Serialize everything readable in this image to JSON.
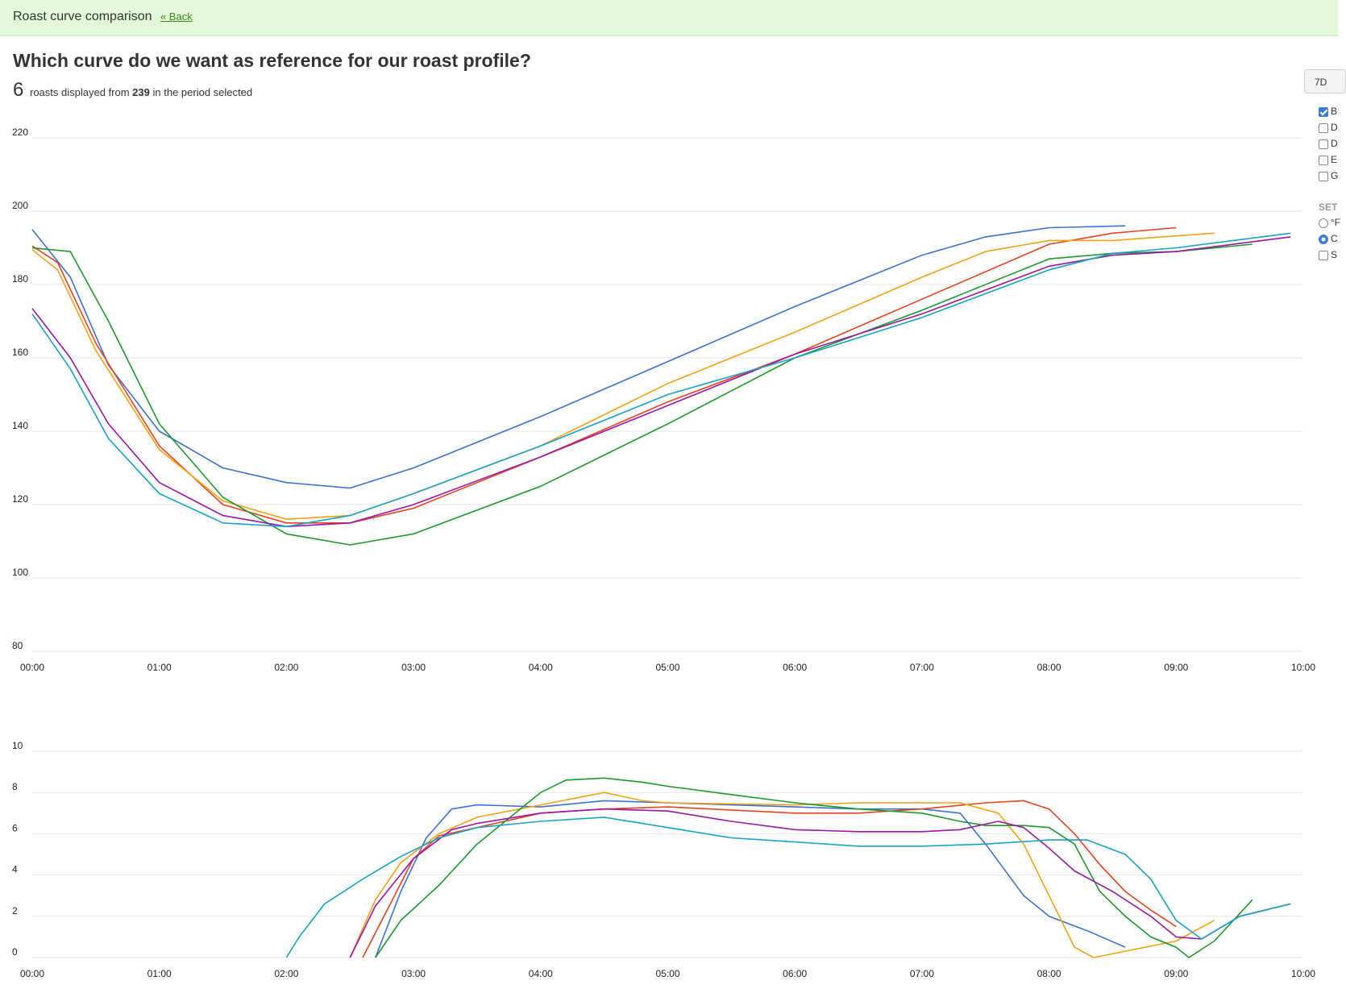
{
  "header": {
    "title": "Roast curve comparison",
    "back_label": "« Back"
  },
  "heading": "Which curve do we want as reference for our roast profile?",
  "summary": {
    "count": "6",
    "text_before": "roasts displayed from",
    "total": "239",
    "text_after": "in the period selected"
  },
  "controls": {
    "range_button": "7D",
    "checkboxes": [
      {
        "label": "B",
        "checked": true
      },
      {
        "label": "D",
        "checked": false
      },
      {
        "label": "D",
        "checked": false
      },
      {
        "label": "E",
        "checked": false
      },
      {
        "label": "G",
        "checked": false
      }
    ],
    "settings_label": "SET",
    "radios": [
      {
        "label": "°F",
        "checked": false
      },
      {
        "label": "C",
        "checked": true
      }
    ],
    "extra_checkbox": {
      "label": "S",
      "checked": false
    }
  },
  "chart_data": [
    {
      "type": "line",
      "title": "",
      "xlabel": "",
      "ylabel": "",
      "x_unit": "minutes",
      "xlim": [
        0,
        10
      ],
      "ylim": [
        80,
        220
      ],
      "yticks": [
        80,
        100,
        120,
        140,
        160,
        180,
        200,
        220
      ],
      "xtick_labels": [
        "00:00",
        "01:00",
        "02:00",
        "03:00",
        "04:00",
        "05:00",
        "06:00",
        "07:00",
        "08:00",
        "09:00",
        "10:00"
      ],
      "grid": true,
      "series": [
        {
          "color": "#3b6fd4",
          "points": [
            [
              0,
              195
            ],
            [
              0.3,
              182
            ],
            [
              0.6,
              158
            ],
            [
              1.0,
              140
            ],
            [
              1.5,
              130
            ],
            [
              2.0,
              126
            ],
            [
              2.5,
              124.5
            ],
            [
              3.0,
              130
            ],
            [
              4.0,
              144
            ],
            [
              5.0,
              159
            ],
            [
              6.0,
              174
            ],
            [
              7.0,
              188
            ],
            [
              7.5,
              193
            ],
            [
              8.0,
              195.5
            ],
            [
              8.6,
              196
            ]
          ]
        },
        {
          "color": "#e8421c",
          "points": [
            [
              0,
              190.5
            ],
            [
              0.2,
              186
            ],
            [
              0.5,
              164
            ],
            [
              1.0,
              136
            ],
            [
              1.5,
              120
            ],
            [
              2.0,
              115
            ],
            [
              2.5,
              115
            ],
            [
              3.0,
              119
            ],
            [
              4.0,
              133
            ],
            [
              5.0,
              148
            ],
            [
              6.0,
              161
            ],
            [
              7.0,
              176
            ],
            [
              8.0,
              191
            ],
            [
              8.5,
              194
            ],
            [
              9.0,
              195.5
            ]
          ]
        },
        {
          "color": "#f5a112",
          "points": [
            [
              0,
              189.5
            ],
            [
              0.2,
              184
            ],
            [
              0.5,
              162
            ],
            [
              1.0,
              135
            ],
            [
              1.5,
              121
            ],
            [
              2.0,
              116
            ],
            [
              2.5,
              117
            ],
            [
              3.0,
              123
            ],
            [
              4.0,
              136
            ],
            [
              5.0,
              153
            ],
            [
              6.0,
              167
            ],
            [
              7.0,
              182
            ],
            [
              7.5,
              189
            ],
            [
              8.0,
              192
            ],
            [
              8.5,
              192
            ],
            [
              9.3,
              194
            ]
          ]
        },
        {
          "color": "#1a9a2a",
          "points": [
            [
              0,
              190
            ],
            [
              0.3,
              189
            ],
            [
              0.6,
              170
            ],
            [
              1.0,
              142
            ],
            [
              1.5,
              122
            ],
            [
              2.0,
              112
            ],
            [
              2.5,
              109
            ],
            [
              3.0,
              112
            ],
            [
              4.0,
              125
            ],
            [
              5.0,
              142
            ],
            [
              6.0,
              160
            ],
            [
              7.0,
              173
            ],
            [
              8.0,
              187
            ],
            [
              8.5,
              188.5
            ],
            [
              9.0,
              189
            ],
            [
              9.6,
              191
            ]
          ]
        },
        {
          "color": "#9b15a8",
          "points": [
            [
              0,
              173.5
            ],
            [
              0.3,
              160
            ],
            [
              0.6,
              142
            ],
            [
              1.0,
              126
            ],
            [
              1.5,
              117
            ],
            [
              2.0,
              114
            ],
            [
              2.5,
              115
            ],
            [
              3.0,
              120
            ],
            [
              4.0,
              133
            ],
            [
              5.0,
              147
            ],
            [
              6.0,
              161
            ],
            [
              7.0,
              172
            ],
            [
              8.0,
              185
            ],
            [
              8.5,
              188
            ],
            [
              9.0,
              189
            ],
            [
              9.9,
              193
            ]
          ]
        },
        {
          "color": "#17a2c7",
          "points": [
            [
              0,
              172
            ],
            [
              0.3,
              157
            ],
            [
              0.6,
              138
            ],
            [
              1.0,
              123
            ],
            [
              1.5,
              115
            ],
            [
              2.0,
              114
            ],
            [
              2.5,
              117
            ],
            [
              3.0,
              123
            ],
            [
              4.0,
              136
            ],
            [
              5.0,
              150
            ],
            [
              6.0,
              160
            ],
            [
              7.0,
              171
            ],
            [
              8.0,
              184
            ],
            [
              8.5,
              188.5
            ],
            [
              9.0,
              190
            ],
            [
              9.9,
              194
            ]
          ]
        }
      ]
    },
    {
      "type": "line",
      "title": "",
      "xlabel": "",
      "ylabel": "",
      "x_unit": "minutes",
      "xlim": [
        0,
        10
      ],
      "ylim": [
        0,
        10
      ],
      "yticks": [
        0,
        2,
        4,
        6,
        8,
        10
      ],
      "xtick_labels": [
        "00:00",
        "01:00",
        "02:00",
        "03:00",
        "04:00",
        "05:00",
        "06:00",
        "07:00",
        "08:00",
        "09:00",
        "10:00"
      ],
      "grid": true,
      "series": [
        {
          "color": "#3b6fd4",
          "points": [
            [
              2.7,
              0
            ],
            [
              2.9,
              3.2
            ],
            [
              3.1,
              5.8
            ],
            [
              3.3,
              7.2
            ],
            [
              3.5,
              7.4
            ],
            [
              4.0,
              7.3
            ],
            [
              4.5,
              7.6
            ],
            [
              5.0,
              7.5
            ],
            [
              6.0,
              7.3
            ],
            [
              6.5,
              7.2
            ],
            [
              7.0,
              7.2
            ],
            [
              7.3,
              7.0
            ],
            [
              7.5,
              5.5
            ],
            [
              7.8,
              3.0
            ],
            [
              8.0,
              2.0
            ],
            [
              8.3,
              1.3
            ],
            [
              8.6,
              0.5
            ]
          ]
        },
        {
          "color": "#e8421c",
          "points": [
            [
              2.6,
              0
            ],
            [
              2.8,
              2.4
            ],
            [
              3.0,
              4.8
            ],
            [
              3.2,
              5.9
            ],
            [
              3.5,
              6.3
            ],
            [
              4.0,
              7.0
            ],
            [
              4.5,
              7.2
            ],
            [
              5.0,
              7.3
            ],
            [
              6.0,
              7.0
            ],
            [
              6.5,
              7.0
            ],
            [
              7.0,
              7.2
            ],
            [
              7.5,
              7.5
            ],
            [
              7.8,
              7.6
            ],
            [
              8.0,
              7.2
            ],
            [
              8.2,
              6.0
            ],
            [
              8.4,
              4.5
            ],
            [
              8.6,
              3.2
            ],
            [
              8.8,
              2.3
            ],
            [
              9.0,
              1.5
            ]
          ]
        },
        {
          "color": "#f5a112",
          "points": [
            [
              2.5,
              0
            ],
            [
              2.7,
              2.8
            ],
            [
              2.9,
              4.6
            ],
            [
              3.2,
              6.0
            ],
            [
              3.5,
              6.8
            ],
            [
              4.0,
              7.4
            ],
            [
              4.5,
              8.0
            ],
            [
              4.8,
              7.6
            ],
            [
              5.0,
              7.5
            ],
            [
              6.0,
              7.4
            ],
            [
              6.5,
              7.5
            ],
            [
              7.0,
              7.5
            ],
            [
              7.3,
              7.5
            ],
            [
              7.6,
              7.0
            ],
            [
              7.8,
              5.5
            ],
            [
              8.0,
              3.0
            ],
            [
              8.2,
              0.5
            ],
            [
              8.35,
              0
            ],
            [
              9.0,
              0.8
            ],
            [
              9.3,
              1.8
            ]
          ]
        },
        {
          "color": "#1a9a2a",
          "points": [
            [
              2.7,
              0
            ],
            [
              2.9,
              1.8
            ],
            [
              3.2,
              3.5
            ],
            [
              3.5,
              5.5
            ],
            [
              3.8,
              7.0
            ],
            [
              4.0,
              8.0
            ],
            [
              4.2,
              8.6
            ],
            [
              4.5,
              8.7
            ],
            [
              4.8,
              8.5
            ],
            [
              5.0,
              8.3
            ],
            [
              5.5,
              7.9
            ],
            [
              6.0,
              7.5
            ],
            [
              6.5,
              7.2
            ],
            [
              7.0,
              7.0
            ],
            [
              7.3,
              6.6
            ],
            [
              7.5,
              6.4
            ],
            [
              7.8,
              6.4
            ],
            [
              8.0,
              6.3
            ],
            [
              8.2,
              5.5
            ],
            [
              8.4,
              3.2
            ],
            [
              8.6,
              2.0
            ],
            [
              8.8,
              1.0
            ],
            [
              9.0,
              0.5
            ],
            [
              9.1,
              0
            ],
            [
              9.3,
              0.8
            ],
            [
              9.6,
              2.8
            ]
          ]
        },
        {
          "color": "#9b15a8",
          "points": [
            [
              2.5,
              0
            ],
            [
              2.7,
              2.5
            ],
            [
              3.0,
              4.8
            ],
            [
              3.3,
              6.2
            ],
            [
              3.5,
              6.5
            ],
            [
              4.0,
              7.0
            ],
            [
              4.5,
              7.2
            ],
            [
              5.0,
              7.1
            ],
            [
              5.5,
              6.6
            ],
            [
              6.0,
              6.2
            ],
            [
              6.5,
              6.1
            ],
            [
              7.0,
              6.1
            ],
            [
              7.3,
              6.2
            ],
            [
              7.6,
              6.6
            ],
            [
              7.8,
              6.3
            ],
            [
              8.0,
              5.3
            ],
            [
              8.2,
              4.2
            ],
            [
              8.5,
              3.2
            ],
            [
              8.8,
              2.0
            ],
            [
              9.0,
              1.0
            ],
            [
              9.2,
              0.9
            ],
            [
              9.5,
              2.0
            ],
            [
              9.9,
              2.6
            ]
          ]
        },
        {
          "color": "#17a2c7",
          "points": [
            [
              2.0,
              0
            ],
            [
              2.1,
              1.0
            ],
            [
              2.3,
              2.6
            ],
            [
              2.6,
              3.8
            ],
            [
              2.9,
              4.9
            ],
            [
              3.2,
              5.8
            ],
            [
              3.5,
              6.3
            ],
            [
              4.0,
              6.6
            ],
            [
              4.5,
              6.8
            ],
            [
              5.0,
              6.3
            ],
            [
              5.5,
              5.8
            ],
            [
              6.0,
              5.6
            ],
            [
              6.5,
              5.4
            ],
            [
              7.0,
              5.4
            ],
            [
              7.5,
              5.5
            ],
            [
              8.0,
              5.7
            ],
            [
              8.3,
              5.7
            ],
            [
              8.6,
              5.0
            ],
            [
              8.8,
              3.8
            ],
            [
              9.0,
              1.8
            ],
            [
              9.2,
              0.9
            ],
            [
              9.5,
              2.0
            ],
            [
              9.9,
              2.6
            ]
          ]
        }
      ]
    }
  ]
}
